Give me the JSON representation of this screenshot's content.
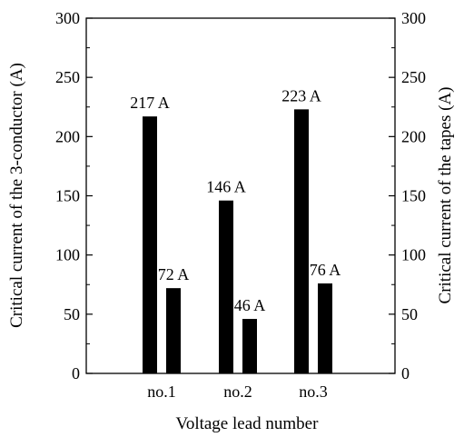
{
  "chart_data": {
    "type": "bar",
    "categories": [
      "no.1",
      "no.2",
      "no.3"
    ],
    "series": [
      {
        "name": "3-conductor",
        "axis": "left",
        "values": [
          217,
          146,
          223
        ],
        "labels": [
          "217 A",
          "146 A",
          "223 A"
        ]
      },
      {
        "name": "tapes",
        "axis": "right",
        "values": [
          72,
          46,
          76
        ],
        "labels": [
          "72 A",
          "46 A",
          "76 A"
        ]
      }
    ],
    "xlabel": "Voltage lead number",
    "ylabel_left": "Critical current of the 3-conductor (A)",
    "ylabel_right": "Critical current of the tapes (A)",
    "ylim": [
      0,
      300
    ],
    "yticks": [
      0,
      50,
      100,
      150,
      200,
      250,
      300
    ],
    "grid": false,
    "legend": "none",
    "bar_color": "#000000"
  }
}
